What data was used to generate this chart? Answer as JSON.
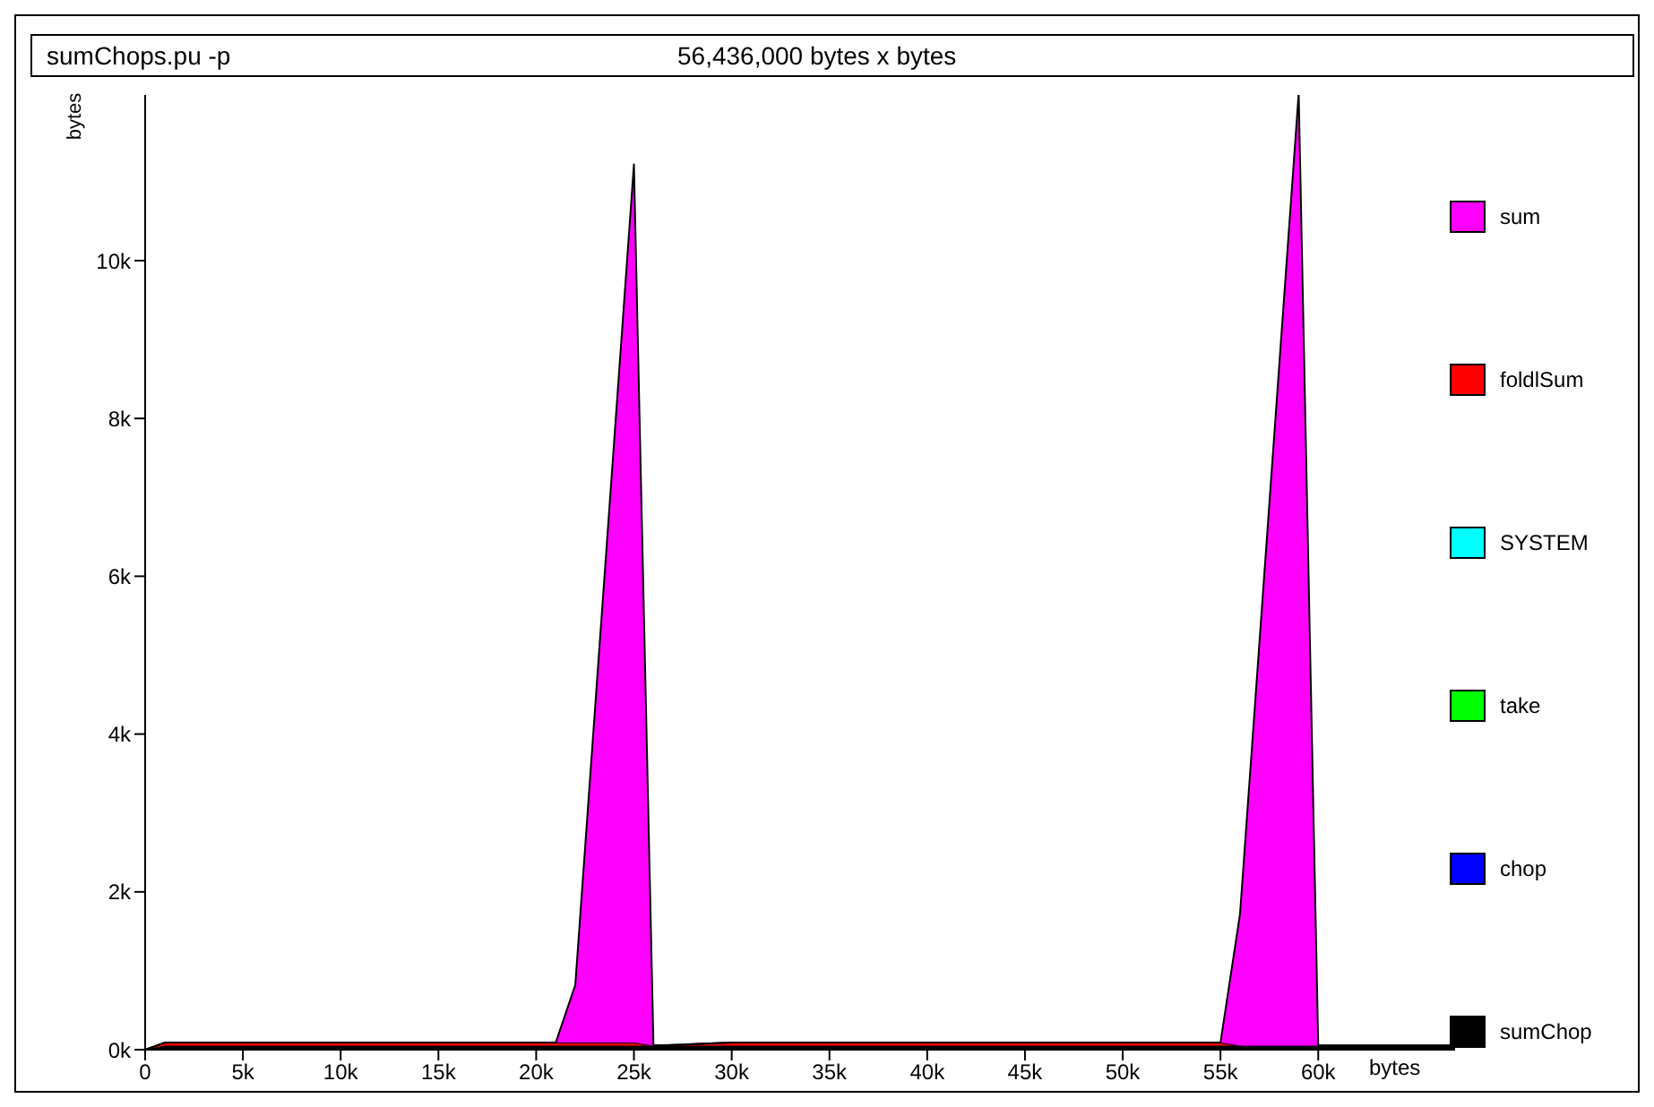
{
  "chart_data": {
    "type": "area",
    "stacked": true,
    "title": "sumChops.pu  -p",
    "subtitle": "56,436,000 bytes x bytes",
    "xlabel": "bytes",
    "ylabel": "bytes",
    "x": [
      0,
      1000,
      5000,
      10000,
      15000,
      20000,
      21000,
      22000,
      25000,
      26000,
      30000,
      35000,
      40000,
      45000,
      50000,
      55000,
      56000,
      59000,
      60000,
      65000,
      67000
    ],
    "series": [
      {
        "name": "sumChop",
        "color": "#000000",
        "values": [
          0,
          50,
          50,
          50,
          50,
          50,
          50,
          50,
          50,
          50,
          50,
          50,
          50,
          50,
          50,
          50,
          50,
          50,
          50,
          50,
          50
        ]
      },
      {
        "name": "chop",
        "color": "#0000ff",
        "values": [
          null,
          null,
          null,
          null,
          null,
          null,
          null,
          null,
          null,
          null,
          null,
          null,
          null,
          null,
          null,
          null,
          null,
          null,
          null,
          null,
          null
        ]
      },
      {
        "name": "take",
        "color": "#00ff00",
        "values": [
          null,
          null,
          null,
          null,
          null,
          null,
          null,
          null,
          null,
          null,
          null,
          null,
          null,
          null,
          null,
          null,
          null,
          null,
          null,
          null,
          null
        ]
      },
      {
        "name": "SYSTEM",
        "color": "#00ffff",
        "values": [
          null,
          null,
          null,
          null,
          null,
          null,
          null,
          null,
          null,
          null,
          null,
          null,
          null,
          null,
          null,
          null,
          null,
          null,
          null,
          null,
          null
        ]
      },
      {
        "name": "foldlSum",
        "color": "#ff0000",
        "values": [
          0,
          40,
          40,
          40,
          40,
          40,
          40,
          40,
          40,
          0,
          40,
          40,
          40,
          40,
          40,
          40,
          0,
          0,
          0,
          0,
          0
        ]
      },
      {
        "name": "sum",
        "color": "#ff00ff",
        "values": [
          0,
          0,
          0,
          0,
          0,
          0,
          0,
          730,
          11130,
          0,
          0,
          0,
          0,
          0,
          0,
          0,
          1670,
          12070,
          0,
          0,
          0
        ]
      }
    ],
    "xlim": [
      0,
      67000
    ],
    "xticks": [
      0,
      {
        "value": 5000,
        "label": "5k"
      },
      {
        "value": 10000,
        "label": "10k"
      },
      {
        "value": 15000,
        "label": "15k"
      },
      {
        "value": 20000,
        "label": "20k"
      },
      {
        "value": 25000,
        "label": "25k"
      },
      {
        "value": 30000,
        "label": "30k"
      },
      {
        "value": 35000,
        "label": "35k"
      },
      {
        "value": 40000,
        "label": "40k"
      },
      {
        "value": 45000,
        "label": "45k"
      },
      {
        "value": 50000,
        "label": "50k"
      },
      {
        "value": 55000,
        "label": "55k"
      },
      {
        "value": 60000,
        "label": "60k"
      }
    ],
    "ylim": [
      0,
      12100
    ],
    "yticks": [
      {
        "value": 0,
        "label": "0k"
      },
      {
        "value": 2000,
        "label": "2k"
      },
      {
        "value": 4000,
        "label": "4k"
      },
      {
        "value": 6000,
        "label": "6k"
      },
      {
        "value": 8000,
        "label": "8k"
      },
      {
        "value": 10000,
        "label": "10k"
      }
    ],
    "legend": "right",
    "grid": false
  }
}
